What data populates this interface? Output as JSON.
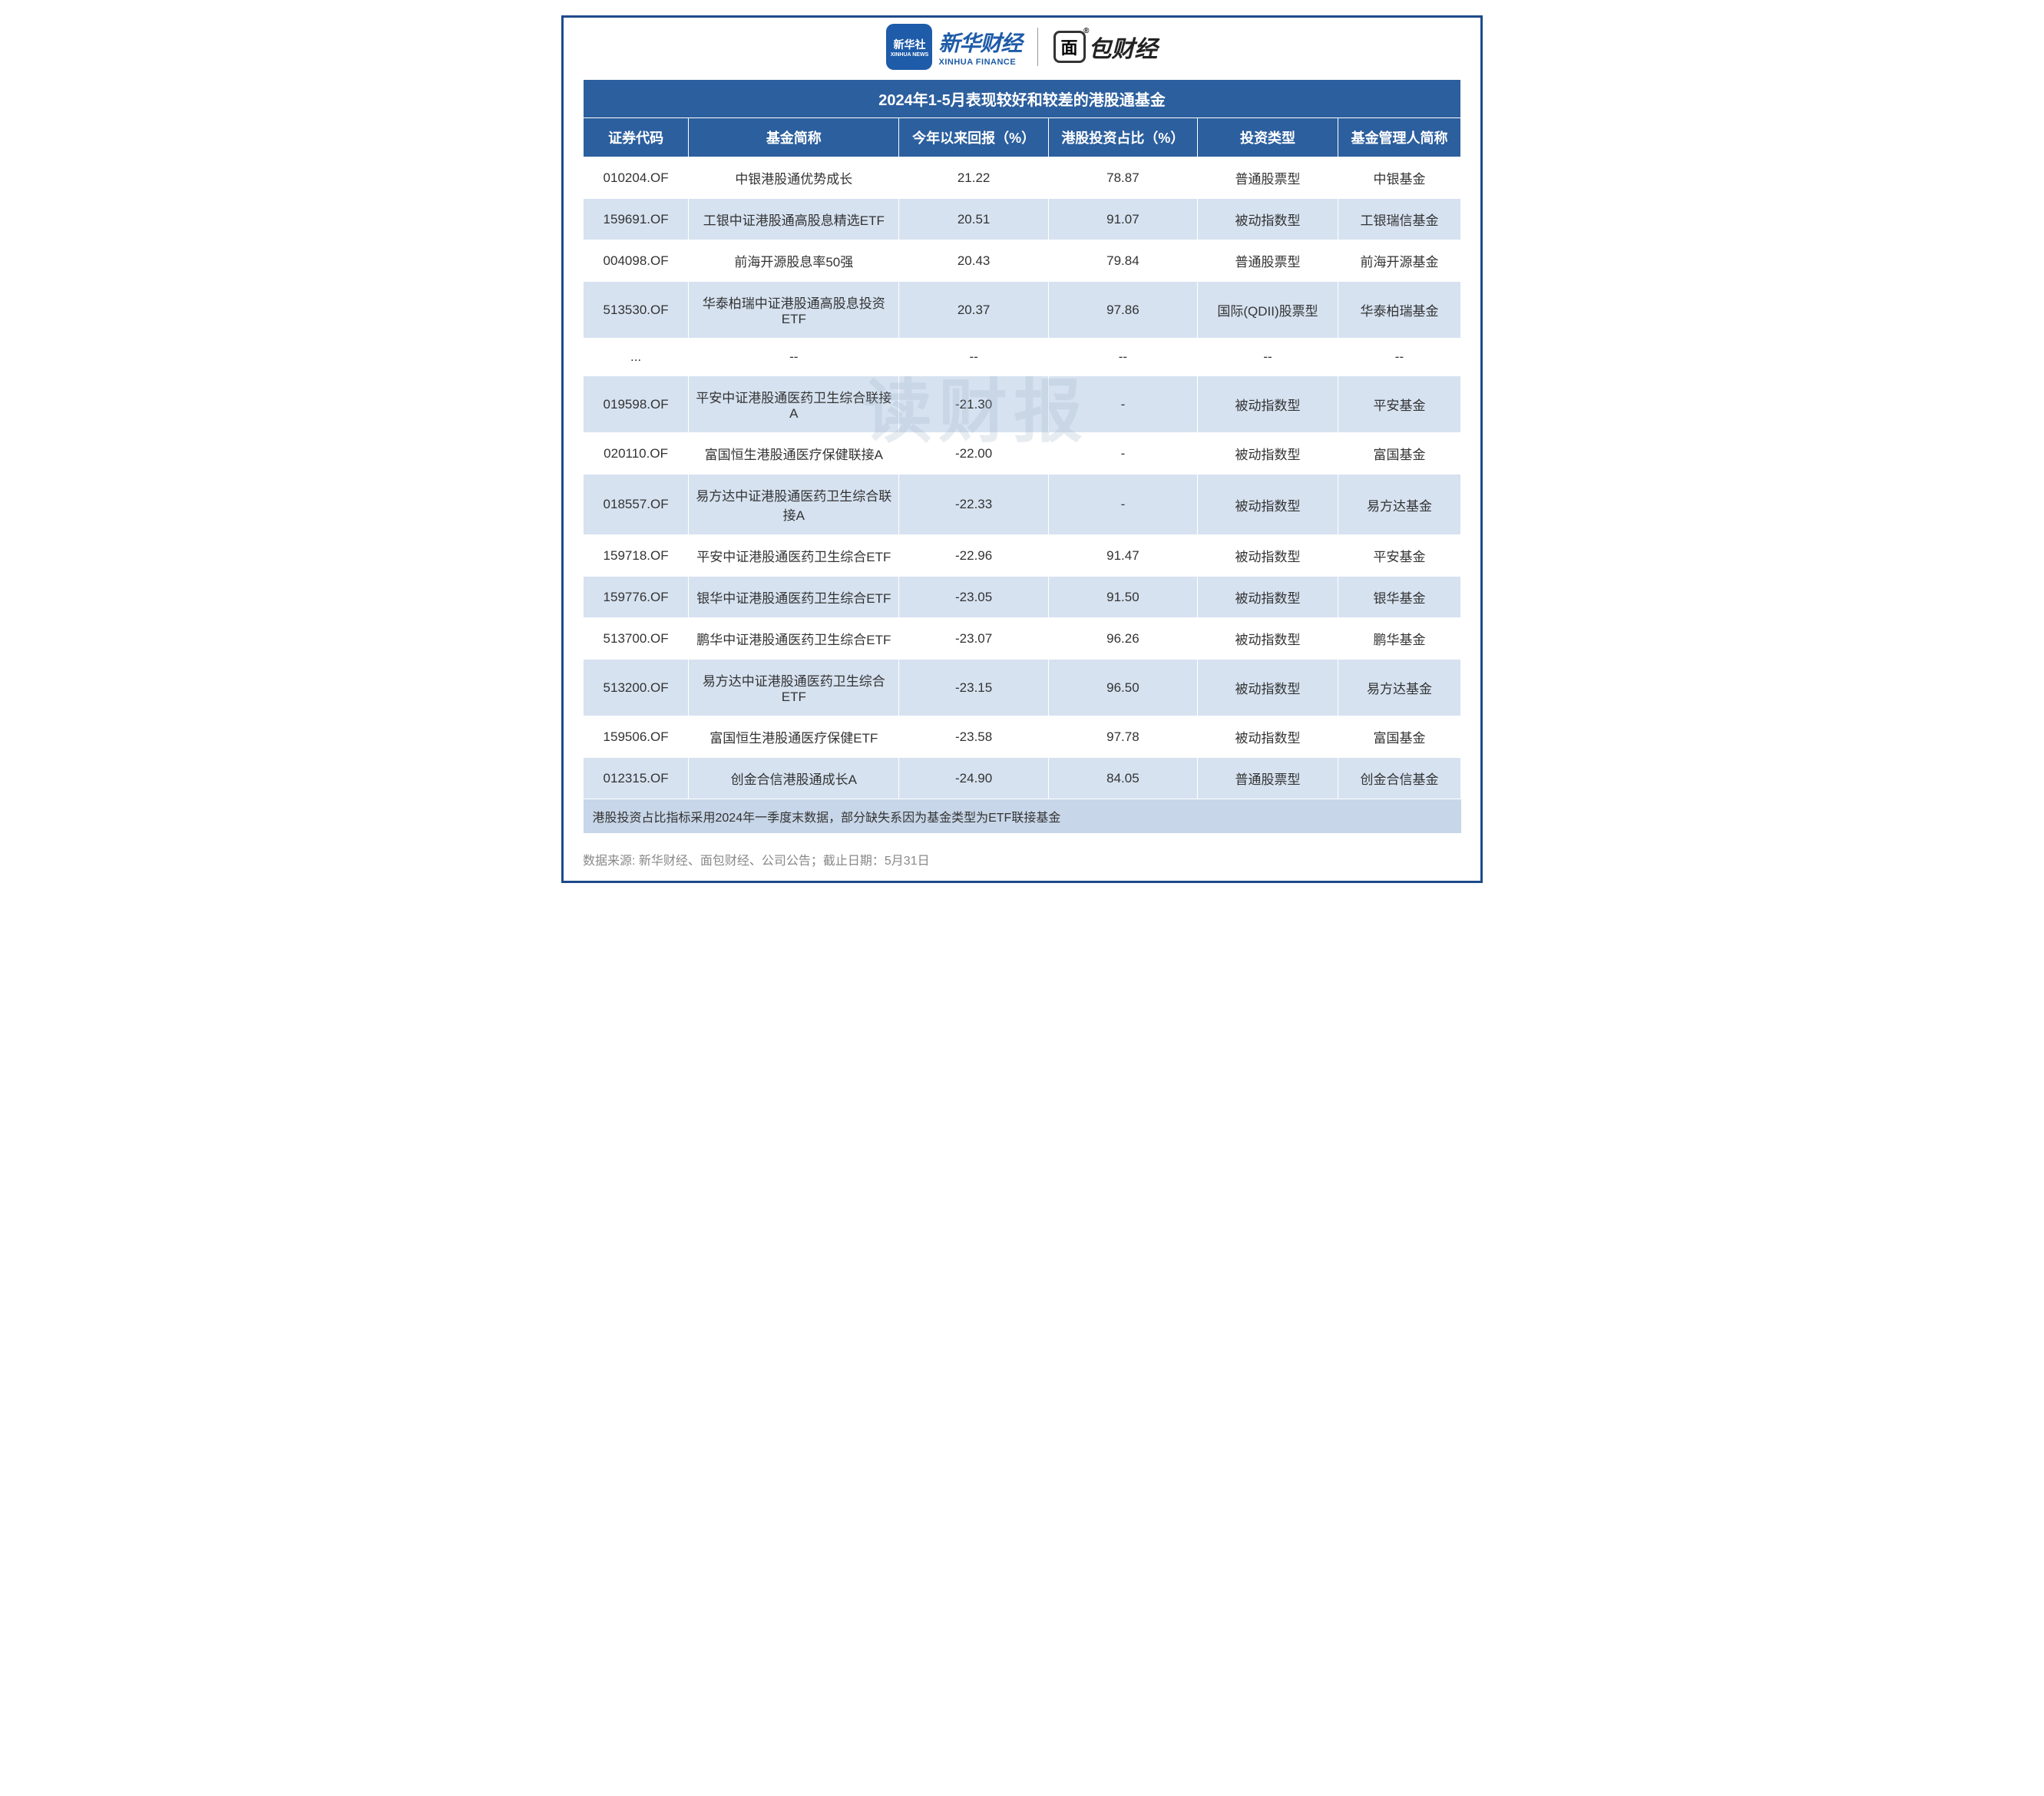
{
  "logos": {
    "xinhua_badge_cn": "新华社",
    "xinhua_badge_en": "XINHUA NEWS",
    "xinhua_cn": "新华财经",
    "xinhua_en": "XINHUA FINANCE",
    "mianbao_icon": "面",
    "mianbao_reg": "®",
    "mianbao_text": "包财经"
  },
  "table": {
    "title": "2024年1-5月表现较好和较差的港股通基金",
    "columns": [
      "证券代码",
      "基金简称",
      "今年以来回报（%）",
      "港股投资占比（%）",
      "投资类型",
      "基金管理人简称"
    ],
    "rows": [
      [
        "010204.OF",
        "中银港股通优势成长",
        "21.22",
        "78.87",
        "普通股票型",
        "中银基金"
      ],
      [
        "159691.OF",
        "工银中证港股通高股息精选ETF",
        "20.51",
        "91.07",
        "被动指数型",
        "工银瑞信基金"
      ],
      [
        "004098.OF",
        "前海开源股息率50强",
        "20.43",
        "79.84",
        "普通股票型",
        "前海开源基金"
      ],
      [
        "513530.OF",
        "华泰柏瑞中证港股通高股息投资ETF",
        "20.37",
        "97.86",
        "国际(QDII)股票型",
        "华泰柏瑞基金"
      ],
      [
        "...",
        "--",
        "--",
        "--",
        "--",
        "--"
      ],
      [
        "019598.OF",
        "平安中证港股通医药卫生综合联接A",
        "-21.30",
        "-",
        "被动指数型",
        "平安基金"
      ],
      [
        "020110.OF",
        "富国恒生港股通医疗保健联接A",
        "-22.00",
        "-",
        "被动指数型",
        "富国基金"
      ],
      [
        "018557.OF",
        "易方达中证港股通医药卫生综合联接A",
        "-22.33",
        "-",
        "被动指数型",
        "易方达基金"
      ],
      [
        "159718.OF",
        "平安中证港股通医药卫生综合ETF",
        "-22.96",
        "91.47",
        "被动指数型",
        "平安基金"
      ],
      [
        "159776.OF",
        "银华中证港股通医药卫生综合ETF",
        "-23.05",
        "91.50",
        "被动指数型",
        "银华基金"
      ],
      [
        "513700.OF",
        "鹏华中证港股通医药卫生综合ETF",
        "-23.07",
        "96.26",
        "被动指数型",
        "鹏华基金"
      ],
      [
        "513200.OF",
        "易方达中证港股通医药卫生综合ETF",
        "-23.15",
        "96.50",
        "被动指数型",
        "易方达基金"
      ],
      [
        "159506.OF",
        "富国恒生港股通医疗保健ETF",
        "-23.58",
        "97.78",
        "被动指数型",
        "富国基金"
      ],
      [
        "012315.OF",
        "创金合信港股通成长A",
        "-24.90",
        "84.05",
        "普通股票型",
        "创金合信基金"
      ]
    ],
    "note": "港股投资占比指标采用2024年一季度末数据，部分缺失系因为基金类型为ETF联接基金"
  },
  "source": "数据来源: 新华财经、面包财经、公司公告；截止日期：5月31日",
  "watermark": "读财报",
  "colors": {
    "header_bg": "#2c5f9e",
    "row_even": "#d6e2f0",
    "row_odd": "#ffffff",
    "note_bg": "#c7d6e8",
    "border": "#1e4a8a"
  }
}
